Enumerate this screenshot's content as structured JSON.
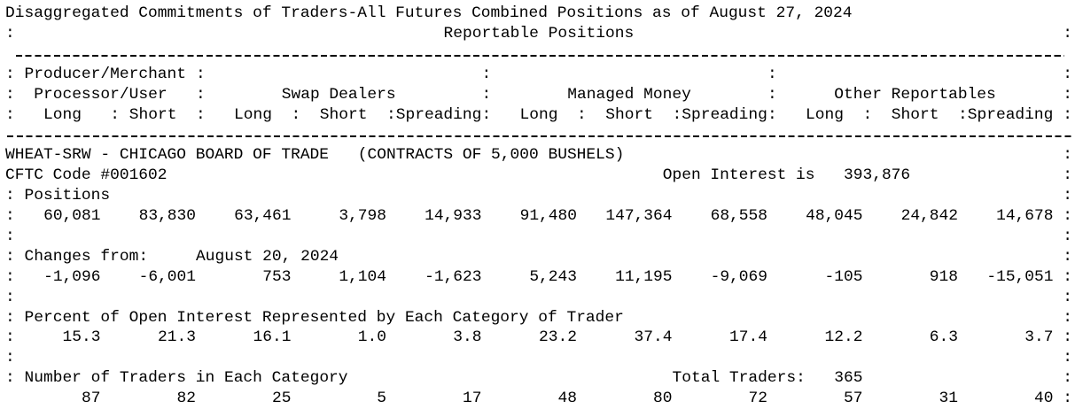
{
  "header": {
    "title": "Disaggregated Commitments of Traders-All Futures Combined Positions as of August 27, 2024",
    "subtitle": "Reportable Positions"
  },
  "groups": [
    "Producer/Merchant",
    "Processor/User",
    "Swap Dealers",
    "Managed Money",
    "Other Reportables"
  ],
  "column_headers": [
    "Long",
    "Short",
    "Long",
    "Short",
    "Spreading",
    "Long",
    "Short",
    "Spreading",
    "Long",
    "Short",
    "Spreading"
  ],
  "commodity": {
    "name": "WHEAT-SRW - CHICAGO BOARD OF TRADE",
    "contract": "(CONTRACTS OF 5,000 BUSHELS)",
    "cftc_code": "CFTC Code #001602",
    "open_interest_label": "Open Interest is",
    "open_interest": "393,876"
  },
  "positions": {
    "label": "Positions",
    "values": [
      "60,081",
      "83,830",
      "63,461",
      "3,798",
      "14,933",
      "91,480",
      "147,364",
      "68,558",
      "48,045",
      "24,842",
      "14,678"
    ]
  },
  "changes": {
    "label": "Changes from:",
    "date": "August 20, 2024",
    "values": [
      "-1,096",
      "-6,001",
      "753",
      "1,104",
      "-1,623",
      "5,243",
      "11,195",
      "-9,069",
      "-105",
      "918",
      "-15,051"
    ]
  },
  "percent": {
    "label": "Percent of Open Interest Represented by Each Category of Trader",
    "values": [
      "15.3",
      "21.3",
      "16.1",
      "1.0",
      "3.8",
      "23.2",
      "37.4",
      "17.4",
      "12.2",
      "6.3",
      "3.7"
    ]
  },
  "traders": {
    "label": "Number of Traders in Each Category",
    "total_label": "Total Traders:",
    "total": "365",
    "values": [
      "87",
      "82",
      "25",
      "5",
      "17",
      "48",
      "80",
      "72",
      "57",
      "31",
      "40"
    ]
  }
}
